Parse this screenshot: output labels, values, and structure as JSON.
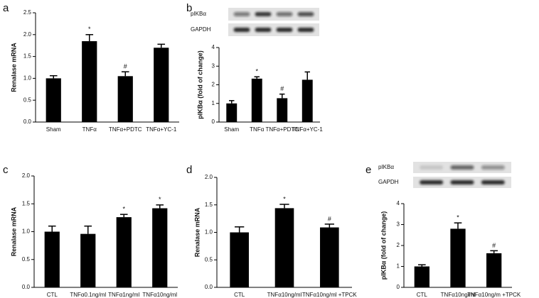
{
  "chart_data": [
    {
      "type": "bar",
      "panel_label": "a",
      "ylabel": "Renalase mRNA",
      "categories": [
        "Sham",
        "TNFα",
        "TNFα+PDTC",
        "TNFα+YC-1"
      ],
      "values": [
        1.0,
        1.85,
        1.05,
        1.7
      ],
      "error": [
        0.06,
        0.15,
        0.1,
        0.08
      ],
      "annotations": [
        null,
        "*",
        "#",
        null
      ],
      "color": "#000000",
      "ylim": [
        0,
        2.5
      ],
      "yticks": [
        {
          "value": 0,
          "label": "0.0"
        },
        {
          "value": 0.5,
          "label": "0.5"
        },
        {
          "value": 1,
          "label": "1.0"
        },
        {
          "value": 1.5,
          "label": "1.5"
        },
        {
          "value": 2,
          "label": "2.0"
        },
        {
          "value": 2.5,
          "label": "2.5"
        }
      ]
    },
    {
      "type": "bar",
      "panel_label": "b",
      "ylabel": "pIKBα (fold of change)",
      "blot_labels": [
        "pIKBα",
        "GAPDH"
      ],
      "categories": [
        "Sham",
        "TNFα",
        "TNFα+PDTC",
        "TNFα+YC-1"
      ],
      "values": [
        1.0,
        2.33,
        1.28,
        2.27
      ],
      "error": [
        0.15,
        0.1,
        0.22,
        0.42
      ],
      "annotations": [
        null,
        "*",
        "#",
        null
      ],
      "color": "#000000",
      "ylim": [
        0,
        4
      ],
      "yticks": [
        0,
        1,
        2,
        3,
        4
      ]
    },
    {
      "type": "bar",
      "panel_label": "c",
      "ylabel": "Renalase mRNA",
      "categories": [
        "CTL",
        "TNFα0.1ng/ml",
        "TNFα1ng/ml",
        "TNFα10ng/ml"
      ],
      "values": [
        1.0,
        0.96,
        1.26,
        1.42
      ],
      "error": [
        0.1,
        0.14,
        0.05,
        0.06
      ],
      "annotations": [
        null,
        null,
        "*",
        "*"
      ],
      "color": "#000000",
      "ylim": [
        0,
        2
      ],
      "yticks": [
        {
          "value": 0,
          "label": "0.0"
        },
        {
          "value": 0.5,
          "label": "0.5"
        },
        {
          "value": 1,
          "label": "1.0"
        },
        {
          "value": 1.5,
          "label": "1.5"
        },
        {
          "value": 2,
          "label": "2.0"
        }
      ]
    },
    {
      "type": "bar",
      "panel_label": "d",
      "ylabel": "Renalase mRNA",
      "categories": [
        "CTL",
        "TNFα10ng/ml",
        "TNFα10ng/ml +TPCK"
      ],
      "values": [
        1.0,
        1.44,
        1.09
      ],
      "error": [
        0.1,
        0.07,
        0.06
      ],
      "annotations": [
        null,
        "*",
        "#"
      ],
      "color": "#000000",
      "ylim": [
        0,
        2
      ],
      "yticks": [
        {
          "value": 0,
          "label": "0.0"
        },
        {
          "value": 0.5,
          "label": "0.5"
        },
        {
          "value": 1,
          "label": "1.0"
        },
        {
          "value": 1.5,
          "label": "1.5"
        },
        {
          "value": 2,
          "label": "2.0"
        }
      ]
    },
    {
      "type": "bar",
      "panel_label": "e",
      "ylabel": "pIKBα (fold of change)",
      "blot_labels": [
        "pIKBα",
        "GAPDH"
      ],
      "categories": [
        "CTL",
        "TNFα10ng/ml",
        "TNFα10ng/m +TPCK"
      ],
      "values": [
        1.0,
        2.8,
        1.63
      ],
      "error": [
        0.08,
        0.28,
        0.12
      ],
      "annotations": [
        null,
        "*",
        "#"
      ],
      "color": "#000000",
      "ylim": [
        0,
        4
      ],
      "yticks": [
        0,
        1,
        2,
        3,
        4
      ]
    }
  ]
}
